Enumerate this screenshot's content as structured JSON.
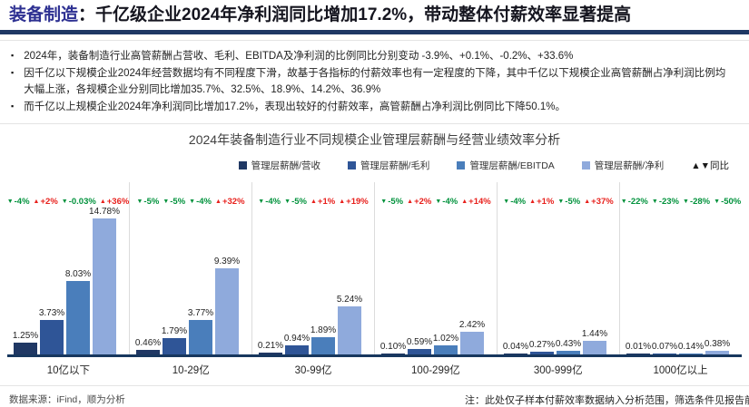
{
  "header": {
    "title_prefix": "装备制造",
    "title_rest": "：千亿级企业2024年净利润同比增加17.2%，带动整体付薪效率显著提高",
    "accent_color": "#1F3864",
    "prefix_color": "#2E3192"
  },
  "bullets": [
    "2024年，装备制造行业高管薪酬占营收、毛利、EBITDA及净利润的比例同比分别变动 -3.9%、+0.1%、-0.2%、+33.6%",
    "因千亿以下规模企业2024年经营数据均有不同程度下滑，故基于各指标的付薪效率也有一定程度的下降，其中千亿以下规模企业高管薪酬占净利润比例均大幅上涨，各规模企业分别同比增加35.7%、32.5%、18.9%、14.2%、36.9%",
    "而千亿以上规模企业2024年净利润同比增加17.2%，表现出较好的付薪效率，高管薪酬占净利润比例同比下降50.1%。"
  ],
  "chart_data": {
    "type": "bar",
    "title": "2024年装备制造行业不同规模企业管理层薪酬与经营业绩效率分析",
    "categories": [
      "10亿以下",
      "10-29亿",
      "30-99亿",
      "100-299亿",
      "300-999亿",
      "1000亿以上"
    ],
    "unit": "%",
    "ylim": [
      0,
      16
    ],
    "grid": false,
    "legend_position": "top-right",
    "series": [
      {
        "name": "管理层薪酬/营收",
        "color": "#203864",
        "values": [
          1.25,
          0.46,
          0.21,
          0.1,
          0.04,
          0.01
        ]
      },
      {
        "name": "管理层薪酬/毛利",
        "color": "#2F5597",
        "values": [
          3.73,
          1.79,
          0.94,
          0.59,
          0.27,
          0.07
        ]
      },
      {
        "name": "管理层薪酬/EBITDA",
        "color": "#4A7EBB",
        "values": [
          8.03,
          3.77,
          1.89,
          1.02,
          0.43,
          0.14
        ]
      },
      {
        "name": "管理层薪酬/净利",
        "color": "#8FAADC",
        "values": [
          14.78,
          9.39,
          5.24,
          2.42,
          1.44,
          0.38
        ]
      }
    ],
    "yoy_legend": "▲▼同比",
    "yoy_colors": {
      "up": "#E8201C",
      "down": "#00923C"
    },
    "yoy": [
      [
        {
          "dir": "down",
          "label": "-4%"
        },
        {
          "dir": "up",
          "label": "+2%"
        },
        {
          "dir": "down",
          "label": "-0.03%"
        },
        {
          "dir": "up",
          "label": "+36%"
        }
      ],
      [
        {
          "dir": "down",
          "label": "-5%"
        },
        {
          "dir": "down",
          "label": "-5%"
        },
        {
          "dir": "down",
          "label": "-4%"
        },
        {
          "dir": "up",
          "label": "+32%"
        }
      ],
      [
        {
          "dir": "down",
          "label": "-4%"
        },
        {
          "dir": "down",
          "label": "-5%"
        },
        {
          "dir": "up",
          "label": "+1%"
        },
        {
          "dir": "up",
          "label": "+19%"
        }
      ],
      [
        {
          "dir": "down",
          "label": "-5%"
        },
        {
          "dir": "up",
          "label": "+2%"
        },
        {
          "dir": "down",
          "label": "-4%"
        },
        {
          "dir": "up",
          "label": "+14%"
        }
      ],
      [
        {
          "dir": "down",
          "label": "-4%"
        },
        {
          "dir": "up",
          "label": "+1%"
        },
        {
          "dir": "down",
          "label": "-5%"
        },
        {
          "dir": "up",
          "label": "+37%"
        }
      ],
      [
        {
          "dir": "down",
          "label": "-22%"
        },
        {
          "dir": "down",
          "label": "-23%"
        },
        {
          "dir": "down",
          "label": "-28%"
        },
        {
          "dir": "down",
          "label": "-50%"
        }
      ]
    ]
  },
  "footer": {
    "source": "数据来源：iFind，顺为分析",
    "note": "注：此处仅子样本付薪效率数据纳入分析范围，筛选条件见报告前说明"
  }
}
